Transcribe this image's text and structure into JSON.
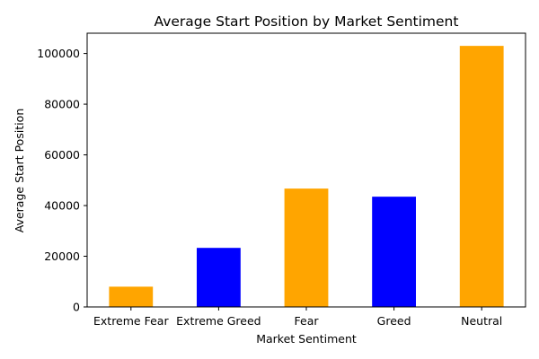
{
  "chart_data": {
    "type": "bar",
    "title": "Average Start Position by Market Sentiment",
    "xlabel": "Market Sentiment",
    "ylabel": "Average Start Position",
    "categories": [
      "Extreme Fear",
      "Extreme Greed",
      "Fear",
      "Greed",
      "Neutral"
    ],
    "values": [
      8000,
      23300,
      46700,
      43500,
      103000
    ],
    "colors": [
      "#ffa500",
      "#0000ff",
      "#ffa500",
      "#0000ff",
      "#ffa500"
    ],
    "ylim": [
      0,
      108000
    ],
    "yticks": [
      0,
      20000,
      40000,
      60000,
      80000,
      100000
    ],
    "ytick_labels": [
      "0",
      "20000",
      "40000",
      "60000",
      "80000",
      "100000"
    ],
    "grid": false,
    "legend": "none"
  }
}
